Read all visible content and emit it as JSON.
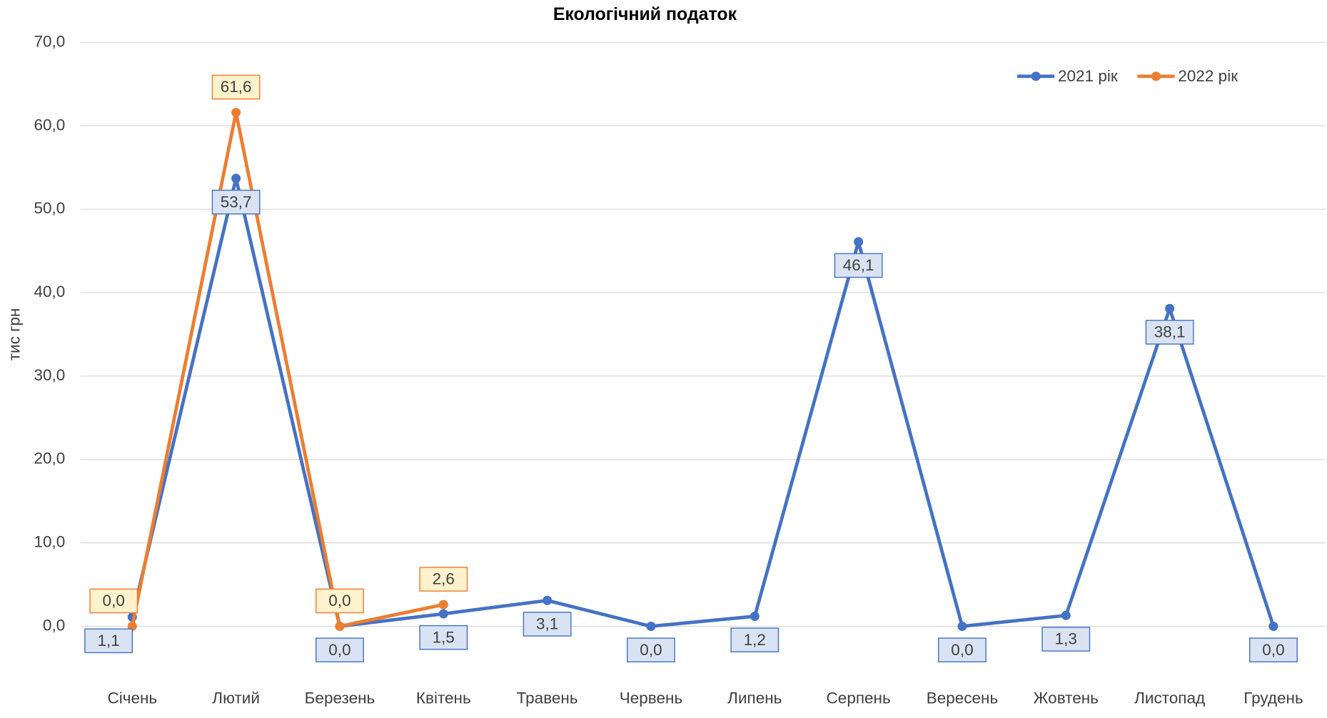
{
  "chart_data": {
    "type": "line",
    "title": "Екологічний податок",
    "y_label": "тис грн",
    "categories": [
      "Січень",
      "Лютий",
      "Березень",
      "Квітень",
      "Травень",
      "Червень",
      "Липень",
      "Серпень",
      "Вересень",
      "Жовтень",
      "Листопад",
      "Грудень"
    ],
    "series": [
      {
        "name": "2021 рік",
        "color": "#4472c4",
        "values": [
          1.1,
          53.7,
          0.0,
          1.5,
          3.1,
          0.0,
          1.2,
          46.1,
          0.0,
          1.3,
          38.1,
          0.0
        ],
        "value_labels": [
          "1,1",
          "53,7",
          "0,0",
          "1,5",
          "3,1",
          "0,0",
          "1,2",
          "46,1",
          "0,0",
          "1,3",
          "38,1",
          "0,0"
        ]
      },
      {
        "name": "2022 рік",
        "color": "#ed7d31",
        "values": [
          0.0,
          61.6,
          0.0,
          2.6,
          null,
          null,
          null,
          null,
          null,
          null,
          null,
          null
        ],
        "value_labels": [
          "0,0",
          "61,6",
          "0,0",
          "2,6",
          null,
          null,
          null,
          null,
          null,
          null,
          null,
          null
        ]
      }
    ],
    "ylim": [
      0,
      70
    ],
    "yticks": [
      {
        "value": 0,
        "label": "0,0"
      },
      {
        "value": 10,
        "label": "10,0"
      },
      {
        "value": 20,
        "label": "20,0"
      },
      {
        "value": 30,
        "label": "30,0"
      },
      {
        "value": 40,
        "label": "40,0"
      },
      {
        "value": 50,
        "label": "50,0"
      },
      {
        "value": 60,
        "label": "60,0"
      },
      {
        "value": 70,
        "label": "70,0"
      }
    ],
    "grid": true,
    "legend": "top-right"
  }
}
